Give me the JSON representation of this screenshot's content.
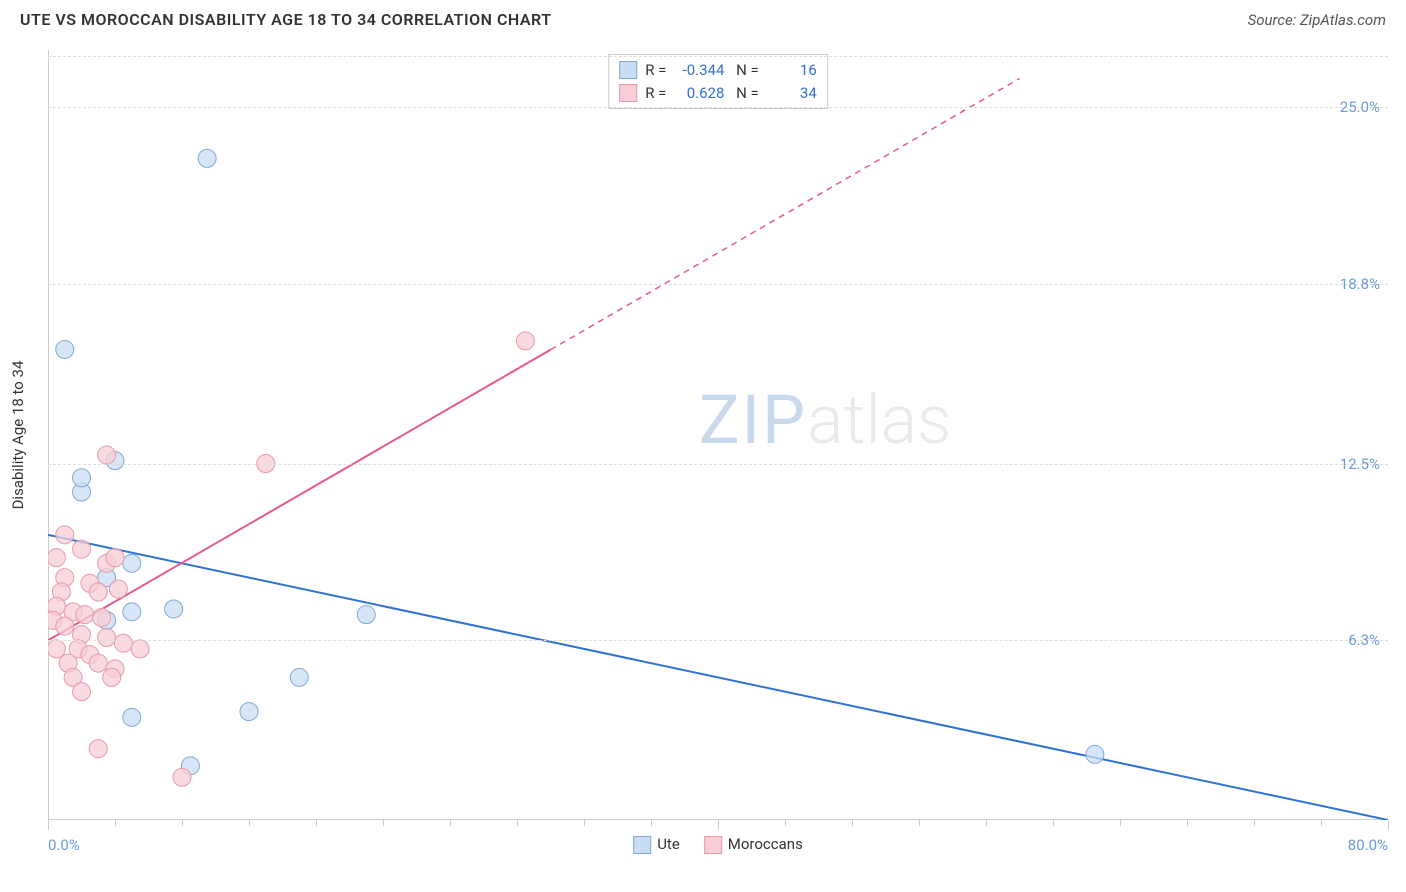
{
  "header": {
    "title": "UTE VS MOROCCAN DISABILITY AGE 18 TO 34 CORRELATION CHART",
    "source": "Source: ZipAtlas.com"
  },
  "watermark": {
    "part1": "ZIP",
    "part2": "atlas"
  },
  "chart": {
    "type": "scatter",
    "y_axis_title": "Disability Age 18 to 34",
    "background_color": "#ffffff",
    "grid_color": "#dddddd",
    "border_color": "#cccccc",
    "xlim": [
      0,
      80
    ],
    "ylim": [
      0,
      27
    ],
    "x_label_min": "0.0%",
    "x_label_max": "80.0%",
    "x_ticks_major": [
      0,
      40,
      80
    ],
    "x_ticks_minor": [
      4,
      8,
      12,
      16,
      20,
      24,
      28,
      32,
      36,
      44,
      48,
      52,
      56,
      60,
      64,
      68,
      72,
      76
    ],
    "y_ticks": [
      {
        "v": 6.3,
        "label": "6.3%"
      },
      {
        "v": 12.5,
        "label": "12.5%"
      },
      {
        "v": 18.8,
        "label": "18.8%"
      },
      {
        "v": 25.0,
        "label": "25.0%"
      }
    ],
    "label_color": "#6b9bd8",
    "label_fontsize": 15,
    "series": [
      {
        "name": "Ute",
        "color_fill": "#c9ddf3",
        "color_stroke": "#7fa9d6",
        "line_color": "#2f72d4",
        "marker_radius": 9,
        "R": "-0.344",
        "N": "16",
        "trend": {
          "x1": 0,
          "y1": 10.0,
          "x2": 80,
          "y2": 0.0,
          "dash_from_x": 80
        },
        "points": [
          [
            1.0,
            16.5
          ],
          [
            9.5,
            23.2
          ],
          [
            2.0,
            11.5
          ],
          [
            4.0,
            12.6
          ],
          [
            2.0,
            12.0
          ],
          [
            5.0,
            9.0
          ],
          [
            3.5,
            8.5
          ],
          [
            5.0,
            7.3
          ],
          [
            7.5,
            7.4
          ],
          [
            3.5,
            7.0
          ],
          [
            19.0,
            7.2
          ],
          [
            15.0,
            5.0
          ],
          [
            5.0,
            3.6
          ],
          [
            12.0,
            3.8
          ],
          [
            8.5,
            1.9
          ],
          [
            62.5,
            2.3
          ]
        ]
      },
      {
        "name": "Moroccans",
        "color_fill": "#f7cdd6",
        "color_stroke": "#e79aac",
        "line_color": "#e85a8a",
        "marker_radius": 9,
        "R": "0.628",
        "N": "34",
        "trend": {
          "x1": 0,
          "y1": 6.3,
          "x2": 58,
          "y2": 26.0,
          "dash_from_x": 30
        },
        "points": [
          [
            28.5,
            16.8
          ],
          [
            3.5,
            12.8
          ],
          [
            13.0,
            12.5
          ],
          [
            1.0,
            10.0
          ],
          [
            2.0,
            9.5
          ],
          [
            0.5,
            9.2
          ],
          [
            3.5,
            9.0
          ],
          [
            4.0,
            9.2
          ],
          [
            1.0,
            8.5
          ],
          [
            2.5,
            8.3
          ],
          [
            3.0,
            8.0
          ],
          [
            0.8,
            8.0
          ],
          [
            4.2,
            8.1
          ],
          [
            0.5,
            7.5
          ],
          [
            1.5,
            7.3
          ],
          [
            2.2,
            7.2
          ],
          [
            3.2,
            7.1
          ],
          [
            0.3,
            7.0
          ],
          [
            1.0,
            6.8
          ],
          [
            2.0,
            6.5
          ],
          [
            3.5,
            6.4
          ],
          [
            1.8,
            6.0
          ],
          [
            4.5,
            6.2
          ],
          [
            0.5,
            6.0
          ],
          [
            2.5,
            5.8
          ],
          [
            1.2,
            5.5
          ],
          [
            3.0,
            5.5
          ],
          [
            4.0,
            5.3
          ],
          [
            1.5,
            5.0
          ],
          [
            3.8,
            5.0
          ],
          [
            2.0,
            4.5
          ],
          [
            3.0,
            2.5
          ],
          [
            8.0,
            1.5
          ],
          [
            5.5,
            6.0
          ]
        ]
      }
    ],
    "bottom_legend": [
      {
        "label": "Ute",
        "fill": "#c9ddf3",
        "stroke": "#7fa9d6"
      },
      {
        "label": "Moroccans",
        "fill": "#f7cdd6",
        "stroke": "#e79aac"
      }
    ]
  }
}
